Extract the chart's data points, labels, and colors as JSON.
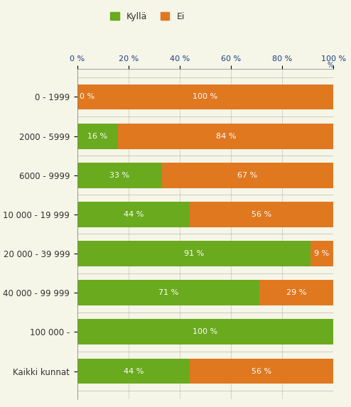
{
  "categories": [
    "0 - 1999",
    "2000 - 5999",
    "6000 - 9999",
    "10 000 - 19 999",
    "20 000 - 39 999",
    "40 000 - 99 999",
    "100 000 -",
    "Kaikki kunnat"
  ],
  "kylla": [
    0,
    16,
    33,
    44,
    91,
    71,
    100,
    44
  ],
  "ei": [
    100,
    84,
    67,
    56,
    9,
    29,
    0,
    56
  ],
  "kylla_color": "#6aaa1e",
  "ei_color": "#e07820",
  "bg_color": "#f5f5e8",
  "title_kylla": "Kyllä",
  "title_ei": "Ei",
  "axis_label_color": "#1a4080",
  "text_color": "#333333",
  "bar_height": 0.65,
  "figsize": [
    4.94,
    5.73
  ],
  "dpi": 100
}
